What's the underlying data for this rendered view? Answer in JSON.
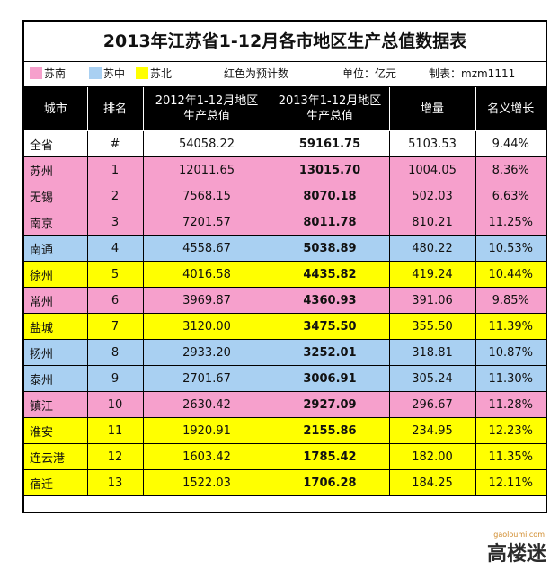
{
  "title": "2013年江苏省1-12月各市地区生产总值数据表",
  "legend": {
    "south": "苏南",
    "middle": "苏中",
    "north": "苏北",
    "note": "红色为预计数",
    "unit": "单位：亿元",
    "maker": "制表：mzm1111"
  },
  "colors": {
    "south": "#f6a0cc",
    "middle": "#a9d0f2",
    "north": "#ffff00"
  },
  "headers": {
    "city": "城市",
    "rank": "排名",
    "gdp2012_line1": "2012年1-12月地区",
    "gdp2012_line2": "生产总值",
    "gdp2013_line1": "2013年1-12月地区",
    "gdp2013_line2": "生产总值",
    "increase": "增量",
    "growth": "名义增长"
  },
  "rows": [
    {
      "city": "全省",
      "rank": "#",
      "gdp2012": "54058.22",
      "gdp2013": "59161.75",
      "increase": "5103.53",
      "growth": "9.44%",
      "region": "total"
    },
    {
      "city": "苏州",
      "rank": "1",
      "gdp2012": "12011.65",
      "gdp2013": "13015.70",
      "increase": "1004.05",
      "growth": "8.36%",
      "region": "south"
    },
    {
      "city": "无锡",
      "rank": "2",
      "gdp2012": "7568.15",
      "gdp2013": "8070.18",
      "increase": "502.03",
      "growth": "6.63%",
      "region": "south"
    },
    {
      "city": "南京",
      "rank": "3",
      "gdp2012": "7201.57",
      "gdp2013": "8011.78",
      "increase": "810.21",
      "growth": "11.25%",
      "region": "south"
    },
    {
      "city": "南通",
      "rank": "4",
      "gdp2012": "4558.67",
      "gdp2013": "5038.89",
      "increase": "480.22",
      "growth": "10.53%",
      "region": "mid"
    },
    {
      "city": "徐州",
      "rank": "5",
      "gdp2012": "4016.58",
      "gdp2013": "4435.82",
      "increase": "419.24",
      "growth": "10.44%",
      "region": "north"
    },
    {
      "city": "常州",
      "rank": "6",
      "gdp2012": "3969.87",
      "gdp2013": "4360.93",
      "increase": "391.06",
      "growth": "9.85%",
      "region": "south"
    },
    {
      "city": "盐城",
      "rank": "7",
      "gdp2012": "3120.00",
      "gdp2013": "3475.50",
      "increase": "355.50",
      "growth": "11.39%",
      "region": "north"
    },
    {
      "city": "扬州",
      "rank": "8",
      "gdp2012": "2933.20",
      "gdp2013": "3252.01",
      "increase": "318.81",
      "growth": "10.87%",
      "region": "mid"
    },
    {
      "city": "泰州",
      "rank": "9",
      "gdp2012": "2701.67",
      "gdp2013": "3006.91",
      "increase": "305.24",
      "growth": "11.30%",
      "region": "mid"
    },
    {
      "city": "镇江",
      "rank": "10",
      "gdp2012": "2630.42",
      "gdp2013": "2927.09",
      "increase": "296.67",
      "growth": "11.28%",
      "region": "south"
    },
    {
      "city": "淮安",
      "rank": "11",
      "gdp2012": "1920.91",
      "gdp2013": "2155.86",
      "increase": "234.95",
      "growth": "12.23%",
      "region": "north"
    },
    {
      "city": "连云港",
      "rank": "12",
      "gdp2012": "1603.42",
      "gdp2013": "1785.42",
      "increase": "182.00",
      "growth": "11.35%",
      "region": "north"
    },
    {
      "city": "宿迁",
      "rank": "13",
      "gdp2012": "1522.03",
      "gdp2013": "1706.28",
      "increase": "184.25",
      "growth": "12.11%",
      "region": "north"
    }
  ],
  "watermark": {
    "logo": "高楼迷",
    "site": "gaoloumi.com"
  }
}
